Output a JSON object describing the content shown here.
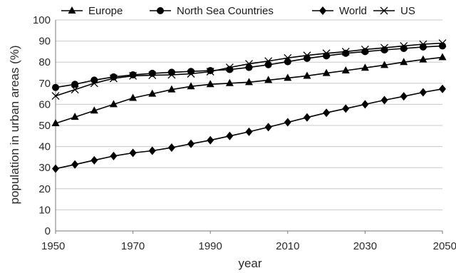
{
  "chart_data": {
    "type": "line",
    "xlabel": "year",
    "ylabel": "population in urban areas (%)",
    "xlim": [
      1950,
      2050
    ],
    "ylim": [
      0,
      100
    ],
    "x_ticks": [
      1950,
      1970,
      1990,
      2010,
      2030,
      2050
    ],
    "y_ticks": [
      0,
      10,
      20,
      30,
      40,
      50,
      60,
      70,
      80,
      90,
      100
    ],
    "grid": "horizontal",
    "legend_position": "top",
    "x": [
      1950,
      1955,
      1960,
      1965,
      1970,
      1975,
      1980,
      1985,
      1990,
      1995,
      2000,
      2005,
      2010,
      2015,
      2020,
      2025,
      2030,
      2035,
      2040,
      2045,
      2050
    ],
    "series": [
      {
        "name": "Europe",
        "marker": "triangle",
        "values": [
          51,
          54,
          57,
          60,
          63,
          65,
          67,
          68.5,
          69.5,
          70,
          70.5,
          71.5,
          72.5,
          73.5,
          74.8,
          76,
          77.3,
          78.6,
          80,
          81.2,
          82.3
        ]
      },
      {
        "name": "North Sea Countries",
        "marker": "circle",
        "values": [
          68,
          69.5,
          71.5,
          73,
          74,
          74.7,
          75.2,
          75.6,
          76,
          76.5,
          77.5,
          78.8,
          80.2,
          81.8,
          83,
          84.2,
          85,
          85.8,
          86.5,
          87.2,
          87.7
        ]
      },
      {
        "name": "World",
        "marker": "diamond",
        "values": [
          29.5,
          31.5,
          33.5,
          35.5,
          37,
          38,
          39.5,
          41.3,
          43,
          45,
          47,
          49.2,
          51.5,
          53.8,
          56,
          58,
          60,
          62,
          63.8,
          65.7,
          67.3
        ]
      },
      {
        "name": "US",
        "marker": "x",
        "values": [
          64,
          67,
          70,
          72.3,
          73.5,
          73.8,
          74,
          74.5,
          75.5,
          77.5,
          79.2,
          80.5,
          82,
          83.2,
          84.2,
          85,
          86,
          86.8,
          87.7,
          88.5,
          89
        ]
      }
    ]
  }
}
